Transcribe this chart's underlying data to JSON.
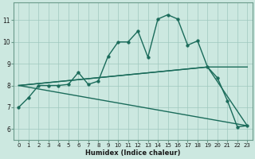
{
  "bg_color": "#cce8e0",
  "grid_color": "#9fc8be",
  "line_color": "#1a6b5a",
  "xlabel": "Humidex (Indice chaleur)",
  "xlim": [
    -0.5,
    23.5
  ],
  "ylim": [
    5.5,
    11.8
  ],
  "yticks": [
    6,
    7,
    8,
    9,
    10,
    11
  ],
  "xticks": [
    0,
    1,
    2,
    3,
    4,
    5,
    6,
    7,
    8,
    9,
    10,
    11,
    12,
    13,
    14,
    15,
    16,
    17,
    18,
    19,
    20,
    21,
    22,
    23
  ],
  "series": [
    {
      "x": [
        0,
        1,
        2,
        3,
        4,
        5,
        6,
        7,
        8,
        9,
        10,
        11,
        12,
        13,
        14,
        15,
        16,
        17,
        18,
        19,
        20,
        21,
        22,
        23
      ],
      "y": [
        7.0,
        7.45,
        8.0,
        8.0,
        8.0,
        8.05,
        8.6,
        8.05,
        8.2,
        9.35,
        10.0,
        10.0,
        10.5,
        9.3,
        11.05,
        11.25,
        11.05,
        9.85,
        10.05,
        8.85,
        8.35,
        7.3,
        6.1,
        6.15
      ],
      "marker": "o",
      "ms": 2.5,
      "lw": 1.0
    },
    {
      "x": [
        0,
        23
      ],
      "y": [
        8.0,
        6.15
      ],
      "marker": null,
      "ms": 0,
      "lw": 1.0
    },
    {
      "x": [
        0,
        19,
        23
      ],
      "y": [
        8.0,
        8.85,
        6.15
      ],
      "marker": null,
      "ms": 0,
      "lw": 1.0
    },
    {
      "x": [
        0,
        19,
        23
      ],
      "y": [
        8.0,
        8.85,
        8.85
      ],
      "marker": null,
      "ms": 0,
      "lw": 1.0
    }
  ]
}
